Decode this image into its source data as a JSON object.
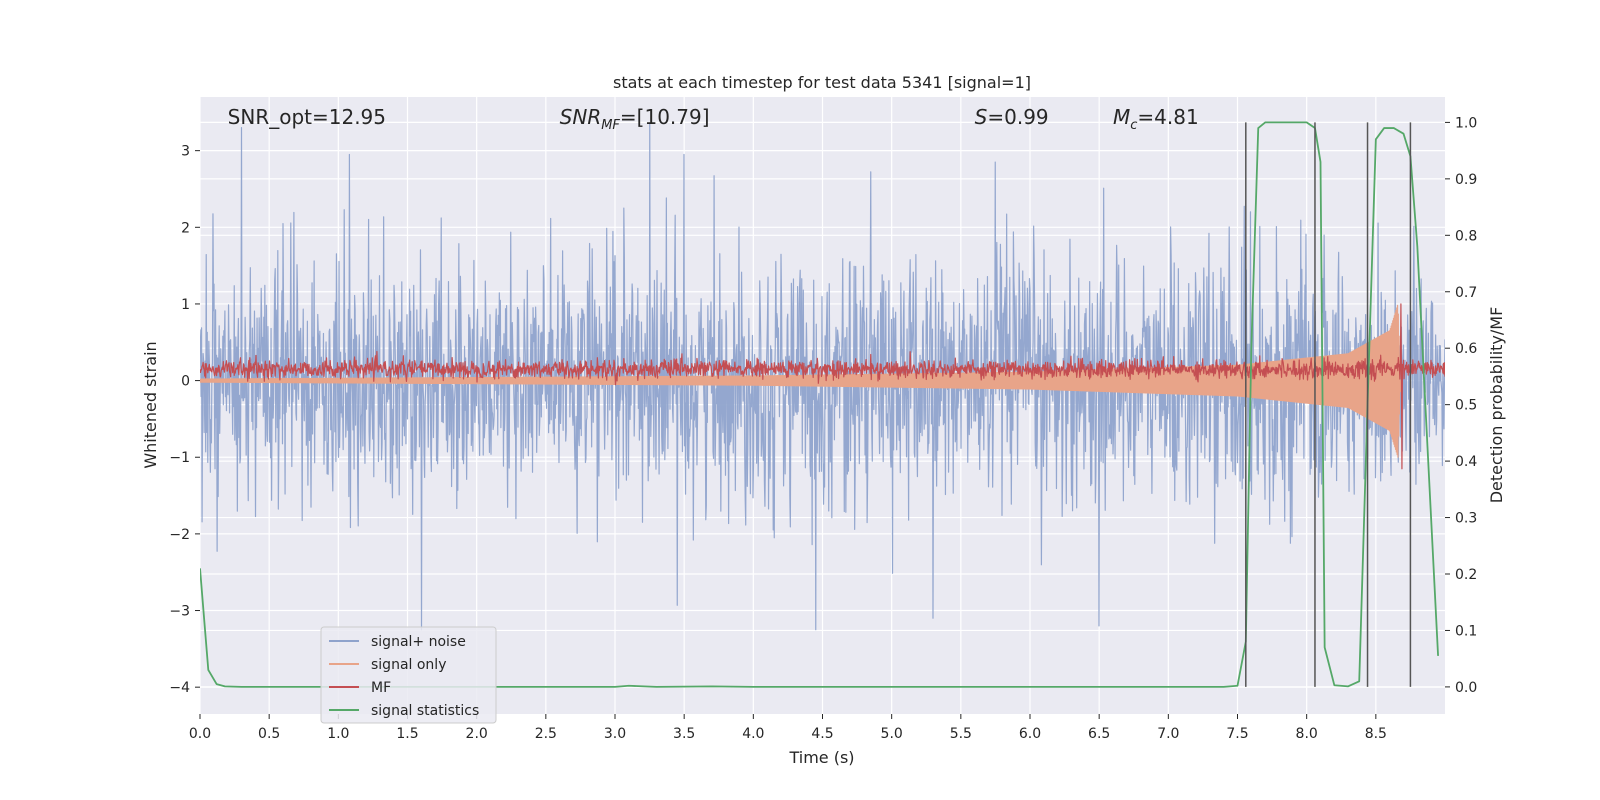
{
  "chart_data": {
    "type": "line",
    "title": "stats at each timestep for test data 5341 [signal=1]",
    "xlabel": "Time (s)",
    "ylabel": "Whitened strain",
    "y2label": "Detection probability/MF",
    "xlim": [
      0.0,
      9.0
    ],
    "ylim": [
      -4.35,
      3.7
    ],
    "y2lim": [
      -0.048,
      1.045
    ],
    "grid": true,
    "x_ticks": [
      0.0,
      0.5,
      1.0,
      1.5,
      2.0,
      2.5,
      3.0,
      3.5,
      4.0,
      4.5,
      5.0,
      5.5,
      6.0,
      6.5,
      7.0,
      7.5,
      8.0,
      8.5
    ],
    "x_tick_labels": [
      "0.0",
      "0.5",
      "1.0",
      "1.5",
      "2.0",
      "2.5",
      "3.0",
      "3.5",
      "4.0",
      "4.5",
      "5.0",
      "5.5",
      "6.0",
      "6.5",
      "7.0",
      "7.5",
      "8.0",
      "8.5"
    ],
    "y_ticks": [
      -4,
      -3,
      -2,
      -1,
      0,
      1,
      2,
      3
    ],
    "y_tick_labels": [
      "−4",
      "−3",
      "−2",
      "−1",
      "0",
      "1",
      "2",
      "3"
    ],
    "y2_ticks": [
      0.0,
      0.1,
      0.2,
      0.3,
      0.4,
      0.5,
      0.6,
      0.7,
      0.8,
      0.9,
      1.0
    ],
    "y2_tick_labels": [
      "0.0",
      "0.1",
      "0.2",
      "0.3",
      "0.4",
      "0.5",
      "0.6",
      "0.7",
      "0.8",
      "0.9",
      "1.0"
    ],
    "annotations": [
      {
        "text": "SNR_opt=12.95",
        "x": 0.2,
        "y": 3.45
      },
      {
        "text": "SNR_MF=[10.79]",
        "x": 2.6,
        "y": 3.45
      },
      {
        "text": "S=0.99",
        "x": 5.6,
        "y": 3.45
      },
      {
        "text": "M_c=4.81",
        "x": 6.6,
        "y": 3.45
      }
    ],
    "legend": {
      "position": "lower-left",
      "entries": [
        {
          "label": "signal+ noise",
          "color": "#8fa3cc"
        },
        {
          "label": "signal only",
          "color": "#e8a489"
        },
        {
          "label": "MF",
          "color": "#c44e52"
        },
        {
          "label": "signal statistics",
          "color": "#55a868"
        }
      ]
    },
    "vlines": {
      "color": "#555555",
      "x": [
        7.56,
        8.06,
        8.44,
        8.75
      ],
      "y2_range": [
        0.0,
        1.0
      ]
    },
    "series": [
      {
        "name": "signal+ noise",
        "color": "#8fa3cc",
        "axis": "left",
        "style": "noise",
        "x_range": [
          0.0,
          9.0
        ],
        "amplitude_std": 0.8,
        "peaks": [
          {
            "x": 0.3,
            "y": 3.3
          },
          {
            "x": 1.08,
            "y": 2.95
          },
          {
            "x": 1.6,
            "y": -3.25
          },
          {
            "x": 3.25,
            "y": 3.35
          },
          {
            "x": 4.45,
            "y": -3.25
          },
          {
            "x": 6.5,
            "y": -3.2
          },
          {
            "x": 5.3,
            "y": -3.1
          },
          {
            "x": 3.5,
            "y": 2.95
          },
          {
            "x": 5.75,
            "y": 2.85
          }
        ]
      },
      {
        "name": "signal only",
        "color": "#e8a489",
        "axis": "left",
        "style": "chirp",
        "x_range": [
          0.0,
          8.68
        ],
        "envelope": [
          [
            0.0,
            0.02
          ],
          [
            4.0,
            0.06
          ],
          [
            6.0,
            0.11
          ],
          [
            7.5,
            0.2
          ],
          [
            8.3,
            0.35
          ],
          [
            8.6,
            0.65
          ],
          [
            8.66,
            1.0
          ],
          [
            8.68,
            0.0
          ]
        ]
      },
      {
        "name": "MF",
        "color": "#c44e52",
        "axis": "left",
        "style": "noise",
        "x_range": [
          0.0,
          9.0
        ],
        "center": 0.15,
        "amplitude_std": 0.06,
        "peaks": [
          {
            "x": 8.68,
            "y": 1.0
          },
          {
            "x": 8.69,
            "y": -1.15
          }
        ]
      },
      {
        "name": "signal statistics",
        "color": "#55a868",
        "axis": "right",
        "style": "line",
        "x": [
          0.0,
          0.06,
          0.12,
          0.18,
          0.3,
          1.0,
          2.0,
          3.0,
          3.1,
          3.3,
          3.7,
          4.0,
          5.0,
          6.0,
          7.0,
          7.4,
          7.5,
          7.56,
          7.6,
          7.65,
          7.7,
          7.8,
          8.0,
          8.06,
          8.1,
          8.13,
          8.2,
          8.3,
          8.38,
          8.44,
          8.5,
          8.56,
          8.63,
          8.7,
          8.75,
          8.8,
          8.95
        ],
        "values": [
          0.21,
          0.03,
          0.005,
          0.001,
          0.0,
          0.0,
          0.0,
          0.0,
          0.002,
          0.0,
          0.001,
          0.0,
          0.0,
          0.0,
          0.0,
          0.0,
          0.002,
          0.08,
          0.6,
          0.99,
          1.0,
          1.0,
          1.0,
          0.99,
          0.93,
          0.07,
          0.003,
          0.001,
          0.01,
          0.5,
          0.97,
          0.99,
          0.99,
          0.98,
          0.94,
          0.78,
          0.055
        ]
      }
    ]
  }
}
